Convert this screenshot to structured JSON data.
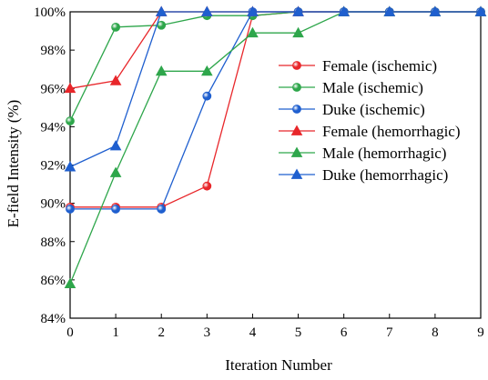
{
  "chart_data": {
    "type": "line",
    "xlabel": "Iteration Number",
    "ylabel": "E-field Intensity (%)",
    "xlim": [
      0,
      9
    ],
    "ylim": [
      84,
      100
    ],
    "x_ticks": [
      0,
      1,
      2,
      3,
      4,
      5,
      6,
      7,
      8,
      9
    ],
    "y_ticks": [
      84,
      86,
      88,
      90,
      92,
      94,
      96,
      98,
      100
    ],
    "y_tick_labels": [
      "84%",
      "86%",
      "88%",
      "90%",
      "92%",
      "94%",
      "96%",
      "98%",
      "100%"
    ],
    "grid": false,
    "legend_position": "center-right",
    "series": [
      {
        "name": "Female (ischemic)",
        "color": "#e8262a",
        "marker": "circle",
        "x": [
          0,
          1,
          2,
          3,
          4,
          5,
          6,
          7,
          8,
          9
        ],
        "y": [
          89.8,
          89.8,
          89.8,
          90.9,
          99.8,
          100,
          100,
          100,
          100,
          100
        ]
      },
      {
        "name": "Male (ischemic)",
        "color": "#2ea64b",
        "marker": "circle",
        "x": [
          0,
          1,
          2,
          3,
          4,
          5,
          6,
          7,
          8,
          9
        ],
        "y": [
          94.3,
          99.2,
          99.3,
          99.8,
          99.8,
          100,
          100,
          100,
          100,
          100
        ]
      },
      {
        "name": "Duke (ischemic)",
        "color": "#1f5fcf",
        "marker": "circle",
        "x": [
          0,
          1,
          2,
          3,
          4,
          5,
          6,
          7,
          8,
          9
        ],
        "y": [
          89.7,
          89.7,
          89.7,
          95.6,
          100,
          100,
          100,
          100,
          100,
          100
        ]
      },
      {
        "name": "Female (hemorrhagic)",
        "color": "#e8262a",
        "marker": "triangle",
        "x": [
          0,
          1,
          2,
          3,
          4,
          5,
          6,
          7,
          8,
          9
        ],
        "y": [
          96,
          96.4,
          100,
          100,
          100,
          100,
          100,
          100,
          100,
          100
        ]
      },
      {
        "name": "Male (hemorrhagic)",
        "color": "#2ea64b",
        "marker": "triangle",
        "x": [
          0,
          1,
          2,
          3,
          4,
          5,
          6,
          7,
          8,
          9
        ],
        "y": [
          85.8,
          91.6,
          96.9,
          96.9,
          98.9,
          98.9,
          100,
          100,
          100,
          100
        ]
      },
      {
        "name": "Duke (hemorrhagic)",
        "color": "#1f5fcf",
        "marker": "triangle",
        "x": [
          0,
          1,
          2,
          3,
          4,
          5,
          6,
          7,
          8,
          9
        ],
        "y": [
          91.9,
          93,
          100,
          100,
          100,
          100,
          100,
          100,
          100,
          100
        ]
      }
    ]
  }
}
